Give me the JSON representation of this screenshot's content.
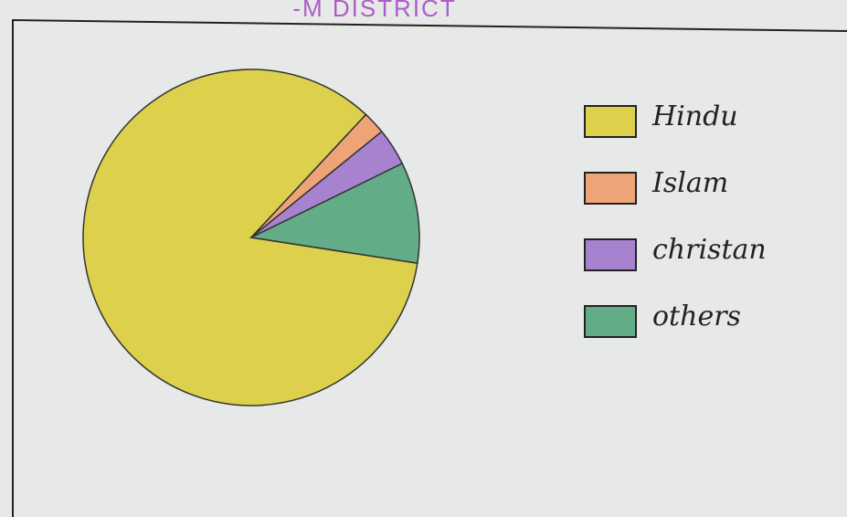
{
  "chart_data": {
    "type": "pie",
    "title": "-M DISTRICT",
    "categories": [
      "Hindu",
      "Islam",
      "christan",
      "others"
    ],
    "values": [
      84.5,
      2.2,
      3.6,
      9.7
    ],
    "colors": [
      "#ddd04c",
      "#eea477",
      "#a782cf",
      "#62ad88"
    ]
  }
}
